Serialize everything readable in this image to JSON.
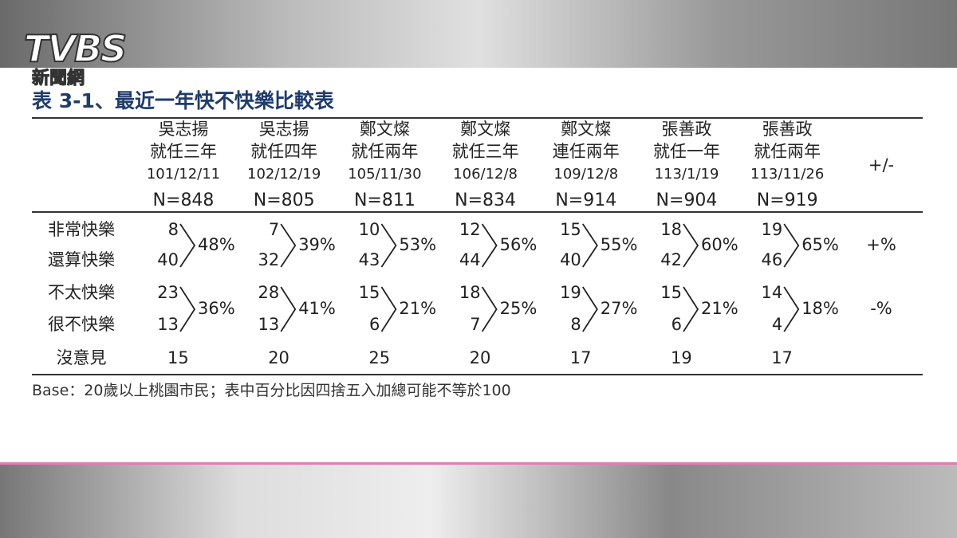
{
  "logo": {
    "brand": "TVBS",
    "sub": "新聞網"
  },
  "title": "表 3-1、最近一年快不快樂比較表",
  "columns": [
    {
      "name": "吳志揚",
      "term": "就任三年",
      "date": "101/12/11",
      "n": "N=848"
    },
    {
      "name": "吳志揚",
      "term": "就任四年",
      "date": "102/12/19",
      "n": "N=805"
    },
    {
      "name": "鄭文燦",
      "term": "就任兩年",
      "date": "105/11/30",
      "n": "N=811"
    },
    {
      "name": "鄭文燦",
      "term": "就任三年",
      "date": "106/12/8",
      "n": "N=834"
    },
    {
      "name": "鄭文燦",
      "term": "連任兩年",
      "date": "109/12/8",
      "n": "N=914"
    },
    {
      "name": "張善政",
      "term": "就任一年",
      "date": "113/1/19",
      "n": "N=904"
    },
    {
      "name": "張善政",
      "term": "就任兩年",
      "date": "113/11/26",
      "n": "N=919"
    }
  ],
  "diff_header": "+/-",
  "rows": [
    {
      "label": "非常快樂",
      "values": [
        8,
        7,
        10,
        12,
        15,
        18,
        19
      ]
    },
    {
      "label": "還算快樂",
      "values": [
        40,
        32,
        43,
        44,
        40,
        42,
        46
      ]
    },
    {
      "label": "不太快樂",
      "values": [
        23,
        28,
        15,
        18,
        19,
        15,
        14
      ]
    },
    {
      "label": "很不快樂",
      "values": [
        13,
        13,
        6,
        7,
        8,
        6,
        4
      ]
    },
    {
      "label": "沒意見",
      "values": [
        15,
        20,
        25,
        20,
        17,
        19,
        17
      ]
    }
  ],
  "groups": [
    {
      "percents": [
        "48%",
        "39%",
        "53%",
        "56%",
        "55%",
        "60%",
        "65%"
      ],
      "diff": "+%"
    },
    {
      "percents": [
        "36%",
        "41%",
        "21%",
        "25%",
        "27%",
        "21%",
        "18%"
      ],
      "diff": "-%"
    }
  ],
  "footnote": "Base：20歲以上桃園市民；表中百分比因四捨五入加總可能不等於100"
}
